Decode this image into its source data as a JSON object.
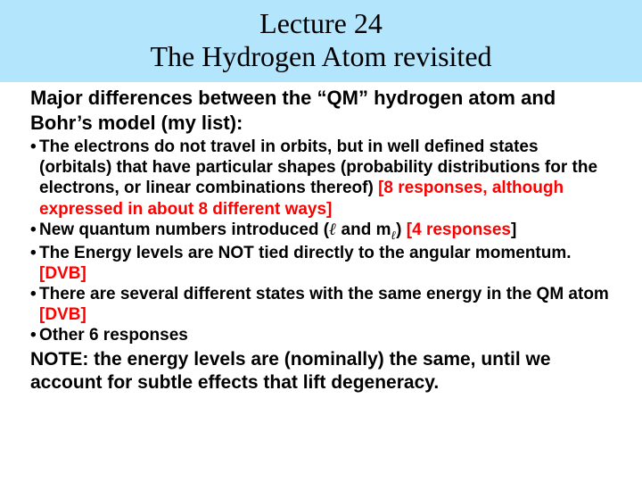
{
  "colors": {
    "banner_bg": "#b3e5fc",
    "body_bg": "#ffffff",
    "title_text": "#000000",
    "body_text": "#000000",
    "highlight": "#ff0000"
  },
  "fonts": {
    "title_family": "Times New Roman",
    "body_family": "Arial",
    "title_size_pt": 32,
    "heading_size_pt": 22,
    "bullet_size_pt": 19,
    "note_size_pt": 21
  },
  "title": {
    "line1": "Lecture 24",
    "line2": "The Hydrogen Atom revisited"
  },
  "heading": "Major differences between the “QM” hydrogen atom and Bohr’s model (my list):",
  "bullets": [
    {
      "text": "The electrons do not travel in orbits, but in well defined states (orbitals) that have particular shapes (probability distributions for the electrons, or linear combinations thereof)  ",
      "highlight": "[8 responses, although expressed in about 8 different ways]"
    },
    {
      "text_prefix": "New quantum numbers introduced (",
      "symbol1": "ℓ",
      "text_mid": " and m",
      "symbol2_sub": "ℓ",
      "text_suffix": ") ",
      "highlight": "[4 responses",
      "trailing_bracket": "]"
    },
    {
      "text": "The Energy levels are NOT tied directly to the angular momentum.  ",
      "highlight": "[DVB]"
    },
    {
      "text": "There are several different states with the same energy in the QM atom ",
      "highlight": "[DVB]"
    },
    {
      "text": "Other 6 responses",
      "highlight": ""
    }
  ],
  "note": "NOTE: the energy levels are (nominally) the same, until we account for subtle effects that lift degeneracy."
}
